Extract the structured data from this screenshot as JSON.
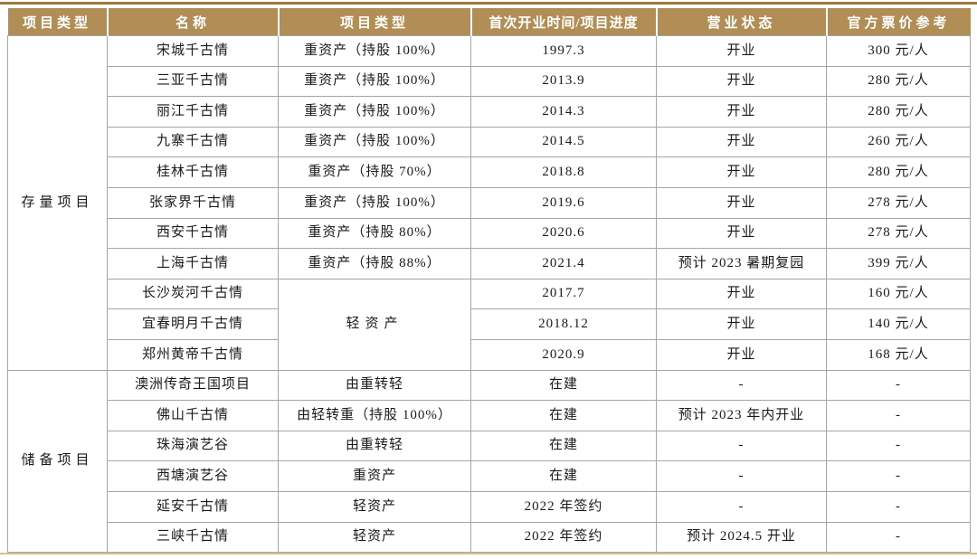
{
  "table": {
    "headers": [
      {
        "label": "项目类型",
        "long": false
      },
      {
        "label": "名称",
        "long": false
      },
      {
        "label": "项目类型",
        "long": false
      },
      {
        "label": "首次开业时间/项目进度",
        "long": true
      },
      {
        "label": "营业状态",
        "long": false
      },
      {
        "label": "官方票价参考",
        "long": false
      }
    ],
    "sections": [
      {
        "category": "存量项目",
        "rows": [
          {
            "name": "宋城千古情",
            "type": "重资产（持股 100%）",
            "open": "1997.3",
            "status": "开业",
            "price": "300 元/人"
          },
          {
            "name": "三亚千古情",
            "type": "重资产（持股 100%）",
            "open": "2013.9",
            "status": "开业",
            "price": "280 元/人"
          },
          {
            "name": "丽江千古情",
            "type": "重资产（持股 100%）",
            "open": "2014.3",
            "status": "开业",
            "price": "280 元/人"
          },
          {
            "name": "九寨千古情",
            "type": "重资产（持股 100%）",
            "open": "2014.5",
            "status": "开业",
            "price": "260 元/人"
          },
          {
            "name": "桂林千古情",
            "type": "重资产（持股 70%）",
            "open": "2018.8",
            "status": "开业",
            "price": "280 元/人"
          },
          {
            "name": "张家界千古情",
            "type": "重资产（持股 100%）",
            "open": "2019.6",
            "status": "开业",
            "price": "278 元/人"
          },
          {
            "name": "西安千古情",
            "type": "重资产（持股 80%）",
            "open": "2020.6",
            "status": "开业",
            "price": "278 元/人"
          },
          {
            "name": "上海千古情",
            "type": "重资产（持股 88%）",
            "open": "2021.4",
            "status": "预计 2023 暑期复园",
            "price": "399 元/人"
          },
          {
            "name": "长沙炭河千古情",
            "type": "轻资产",
            "type_rowspan": 3,
            "open": "2017.7",
            "status": "开业",
            "price": "160 元/人"
          },
          {
            "name": "宜春明月千古情",
            "type": null,
            "open": "2018.12",
            "status": "开业",
            "price": "140 元/人"
          },
          {
            "name": "郑州黄帝千古情",
            "type": null,
            "open": "2020.9",
            "status": "开业",
            "price": "168 元/人"
          }
        ]
      },
      {
        "category": "储备项目",
        "rows": [
          {
            "name": "澳洲传奇王国项目",
            "type": "由重转轻",
            "open": "在建",
            "status": "-",
            "price": "-"
          },
          {
            "name": "佛山千古情",
            "type": "由轻转重（持股 100%）",
            "open": "在建",
            "status": "预计 2023 年内开业",
            "price": "-"
          },
          {
            "name": "珠海演艺谷",
            "type": "由重转轻",
            "open": "在建",
            "status": "-",
            "price": "-"
          },
          {
            "name": "西塘演艺谷",
            "type": "重资产",
            "open": "在建",
            "status": "-",
            "price": "-"
          },
          {
            "name": "延安千古情",
            "type": "轻资产",
            "open": "2022 年签约",
            "status": "-",
            "price": "-"
          },
          {
            "name": "三峡千古情",
            "type": "轻资产",
            "open": "2022 年签约",
            "status": "预计 2024.5 开业",
            "price": "-"
          }
        ]
      }
    ],
    "colors": {
      "header_bg": "#b18e55",
      "header_text": "#ffffff",
      "top_rule": "#9b7a42",
      "bottom_rule": "#d8bd91",
      "grid": "#a6a6a6",
      "body_text": "#1a1a1a"
    }
  }
}
